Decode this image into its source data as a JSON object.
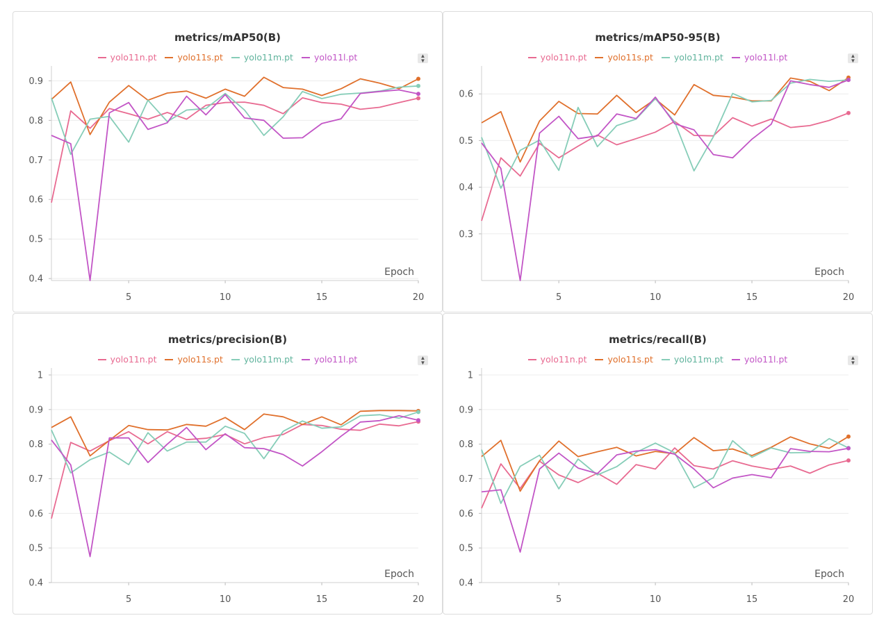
{
  "colors": {
    "yolo11n.pt": "#e86a91",
    "yolo11s.pt": "#e0702c",
    "yolo11m.pt": "#86cdb8",
    "yolo11l.pt": "#c255c6"
  },
  "chart_data": [
    {
      "type": "line",
      "title": "metrics/mAP50(B)",
      "xlabel": "Epoch",
      "ylabel": "",
      "xlim": [
        1,
        20
      ],
      "ylim": [
        0.395,
        0.92
      ],
      "xticks": [
        5,
        10,
        15,
        20
      ],
      "yticks": [
        0.4,
        0.5,
        0.6,
        0.7,
        0.8,
        0.9
      ],
      "grid": true,
      "legend": "top-center",
      "x": [
        1,
        2,
        3,
        4,
        5,
        6,
        7,
        8,
        9,
        10,
        11,
        12,
        13,
        14,
        15,
        16,
        17,
        18,
        19,
        20
      ],
      "series": [
        {
          "name": "yolo11n.pt",
          "values": [
            0.592,
            0.824,
            0.78,
            0.83,
            0.817,
            0.803,
            0.82,
            0.803,
            0.838,
            0.845,
            0.846,
            0.838,
            0.817,
            0.857,
            0.845,
            0.841,
            0.828,
            0.833,
            0.845,
            0.856
          ]
        },
        {
          "name": "yolo11s.pt",
          "values": [
            0.853,
            0.897,
            0.764,
            0.846,
            0.888,
            0.851,
            0.869,
            0.874,
            0.856,
            0.879,
            0.861,
            0.909,
            0.883,
            0.879,
            0.863,
            0.88,
            0.905,
            0.894,
            0.88,
            0.905
          ]
        },
        {
          "name": "yolo11m.pt",
          "values": [
            0.857,
            0.714,
            0.803,
            0.81,
            0.745,
            0.851,
            0.797,
            0.826,
            0.83,
            0.868,
            0.826,
            0.762,
            0.809,
            0.873,
            0.855,
            0.866,
            0.869,
            0.874,
            0.884,
            0.887
          ]
        },
        {
          "name": "yolo11l.pt",
          "values": [
            0.762,
            0.741,
            0.395,
            0.819,
            0.845,
            0.777,
            0.794,
            0.861,
            0.814,
            0.865,
            0.806,
            0.8,
            0.755,
            0.756,
            0.792,
            0.804,
            0.868,
            0.873,
            0.877,
            0.867
          ]
        }
      ]
    },
    {
      "type": "line",
      "title": "metrics/mAP50-95(B)",
      "xlabel": "Epoch",
      "ylabel": "",
      "xlim": [
        1,
        20
      ],
      "ylim": [
        0.2,
        0.645
      ],
      "xticks": [
        5,
        10,
        15,
        20
      ],
      "yticks": [
        0.3,
        0.4,
        0.5,
        0.6
      ],
      "grid": true,
      "legend": "top-center",
      "x": [
        1,
        2,
        3,
        4,
        5,
        6,
        7,
        8,
        9,
        10,
        11,
        12,
        13,
        14,
        15,
        16,
        17,
        18,
        19,
        20
      ],
      "series": [
        {
          "name": "yolo11n.pt",
          "values": [
            0.328,
            0.463,
            0.424,
            0.494,
            0.463,
            0.488,
            0.512,
            0.491,
            0.504,
            0.518,
            0.541,
            0.511,
            0.51,
            0.549,
            0.531,
            0.546,
            0.528,
            0.532,
            0.543,
            0.559
          ]
        },
        {
          "name": "yolo11s.pt",
          "values": [
            0.538,
            0.562,
            0.454,
            0.542,
            0.584,
            0.558,
            0.557,
            0.597,
            0.56,
            0.589,
            0.555,
            0.62,
            0.597,
            0.593,
            0.585,
            0.585,
            0.634,
            0.627,
            0.607,
            0.635
          ]
        },
        {
          "name": "yolo11m.pt",
          "values": [
            0.507,
            0.398,
            0.479,
            0.501,
            0.436,
            0.571,
            0.487,
            0.532,
            0.546,
            0.59,
            0.54,
            0.435,
            0.508,
            0.601,
            0.583,
            0.586,
            0.623,
            0.631,
            0.627,
            0.63
          ]
        },
        {
          "name": "yolo11l.pt",
          "values": [
            0.495,
            0.44,
            0.2,
            0.516,
            0.552,
            0.504,
            0.51,
            0.557,
            0.547,
            0.593,
            0.536,
            0.523,
            0.47,
            0.463,
            0.503,
            0.535,
            0.628,
            0.62,
            0.614,
            0.63
          ]
        }
      ]
    },
    {
      "type": "line",
      "title": "metrics/precision(B)",
      "xlabel": "Epoch",
      "ylabel": "",
      "xlim": [
        1,
        20
      ],
      "ylim": [
        0.4,
        1.0
      ],
      "xticks": [
        5,
        10,
        15,
        20
      ],
      "yticks": [
        0.4,
        0.5,
        0.6,
        0.7,
        0.8,
        0.9,
        1.0
      ],
      "ytick_labels": [
        "0.4",
        "0.5",
        "0.6",
        "0.7",
        "0.8",
        "0.9",
        "1"
      ],
      "grid": true,
      "legend": "top-center",
      "x": [
        1,
        2,
        3,
        4,
        5,
        6,
        7,
        8,
        9,
        10,
        11,
        12,
        13,
        14,
        15,
        16,
        17,
        18,
        19,
        20
      ],
      "series": [
        {
          "name": "yolo11n.pt",
          "values": [
            0.585,
            0.805,
            0.78,
            0.81,
            0.836,
            0.801,
            0.836,
            0.813,
            0.817,
            0.828,
            0.801,
            0.819,
            0.828,
            0.857,
            0.854,
            0.843,
            0.84,
            0.858,
            0.853,
            0.865
          ]
        },
        {
          "name": "yolo11s.pt",
          "values": [
            0.848,
            0.879,
            0.766,
            0.811,
            0.854,
            0.842,
            0.841,
            0.857,
            0.852,
            0.877,
            0.842,
            0.887,
            0.879,
            0.857,
            0.879,
            0.856,
            0.895,
            0.897,
            0.897,
            0.896
          ]
        },
        {
          "name": "yolo11m.pt",
          "values": [
            0.841,
            0.717,
            0.755,
            0.777,
            0.741,
            0.833,
            0.78,
            0.806,
            0.806,
            0.852,
            0.831,
            0.758,
            0.837,
            0.867,
            0.846,
            0.85,
            0.882,
            0.885,
            0.875,
            0.893
          ]
        },
        {
          "name": "yolo11l.pt",
          "values": [
            0.812,
            0.74,
            0.475,
            0.818,
            0.818,
            0.747,
            0.8,
            0.848,
            0.784,
            0.83,
            0.79,
            0.787,
            0.77,
            0.737,
            0.778,
            0.823,
            0.864,
            0.868,
            0.882,
            0.869
          ]
        }
      ]
    },
    {
      "type": "line",
      "title": "metrics/recall(B)",
      "xlabel": "Epoch",
      "ylabel": "",
      "xlim": [
        1,
        20
      ],
      "ylim": [
        0.4,
        1.0
      ],
      "xticks": [
        5,
        10,
        15,
        20
      ],
      "yticks": [
        0.4,
        0.5,
        0.6,
        0.7,
        0.8,
        0.9,
        1.0
      ],
      "ytick_labels": [
        "0.4",
        "0.5",
        "0.6",
        "0.7",
        "0.8",
        "0.9",
        "1"
      ],
      "grid": true,
      "legend": "top-center",
      "x": [
        1,
        2,
        3,
        4,
        5,
        6,
        7,
        8,
        9,
        10,
        11,
        12,
        13,
        14,
        15,
        16,
        17,
        18,
        19,
        20
      ],
      "series": [
        {
          "name": "yolo11n.pt",
          "values": [
            0.615,
            0.743,
            0.672,
            0.751,
            0.711,
            0.689,
            0.716,
            0.684,
            0.741,
            0.728,
            0.789,
            0.738,
            0.728,
            0.752,
            0.737,
            0.727,
            0.737,
            0.716,
            0.74,
            0.753
          ]
        },
        {
          "name": "yolo11s.pt",
          "values": [
            0.764,
            0.811,
            0.664,
            0.752,
            0.809,
            0.764,
            0.778,
            0.791,
            0.766,
            0.779,
            0.772,
            0.819,
            0.781,
            0.786,
            0.767,
            0.791,
            0.821,
            0.801,
            0.788,
            0.822
          ]
        },
        {
          "name": "yolo11m.pt",
          "values": [
            0.784,
            0.629,
            0.736,
            0.768,
            0.671,
            0.757,
            0.711,
            0.735,
            0.776,
            0.803,
            0.775,
            0.674,
            0.703,
            0.81,
            0.762,
            0.789,
            0.775,
            0.776,
            0.816,
            0.789
          ]
        },
        {
          "name": "yolo11l.pt",
          "values": [
            0.662,
            0.668,
            0.488,
            0.728,
            0.774,
            0.731,
            0.715,
            0.769,
            0.78,
            0.784,
            0.771,
            0.728,
            0.674,
            0.702,
            0.712,
            0.703,
            0.787,
            0.779,
            0.778,
            0.788
          ]
        }
      ]
    }
  ]
}
